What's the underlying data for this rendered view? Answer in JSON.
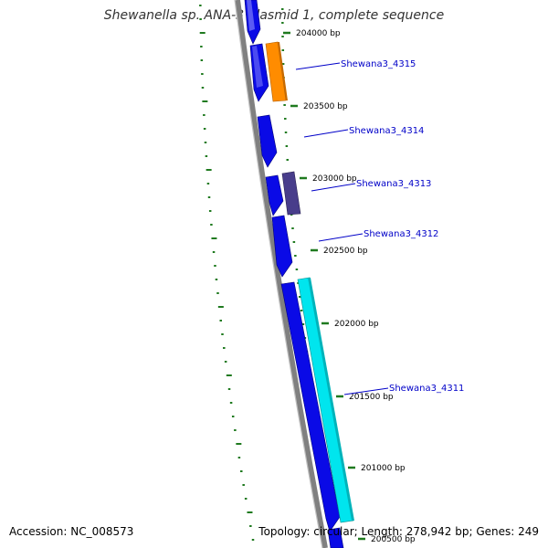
{
  "title": "Shewanella sp. ANA-3 plasmid 1, complete sequence",
  "footer": {
    "accession": "Accession: NC_008573",
    "summary": "Topology: circular; Length: 278,942 bp; Genes: 249"
  },
  "colors": {
    "background": "#ffffff",
    "backbone": "#808080",
    "tick": "#1f7a1f",
    "label_line": "#0000c8",
    "label_text": "#0000c8",
    "gene_blue": "#0a0ae6",
    "gene_orange": "#ff8c00",
    "gene_slate": "#483d8b",
    "gene_cyan": "#00e5ee"
  },
  "scale_ticks": [
    "204000 bp",
    "203500 bp",
    "203000 bp",
    "202500 bp",
    "202000 bp",
    "201500 bp",
    "201000 bp",
    "200500 bp"
  ],
  "gene_labels": [
    "Shewana3_4315",
    "Shewana3_4314",
    "Shewana3_4313",
    "Shewana3_4312",
    "Shewana3_4311"
  ]
}
